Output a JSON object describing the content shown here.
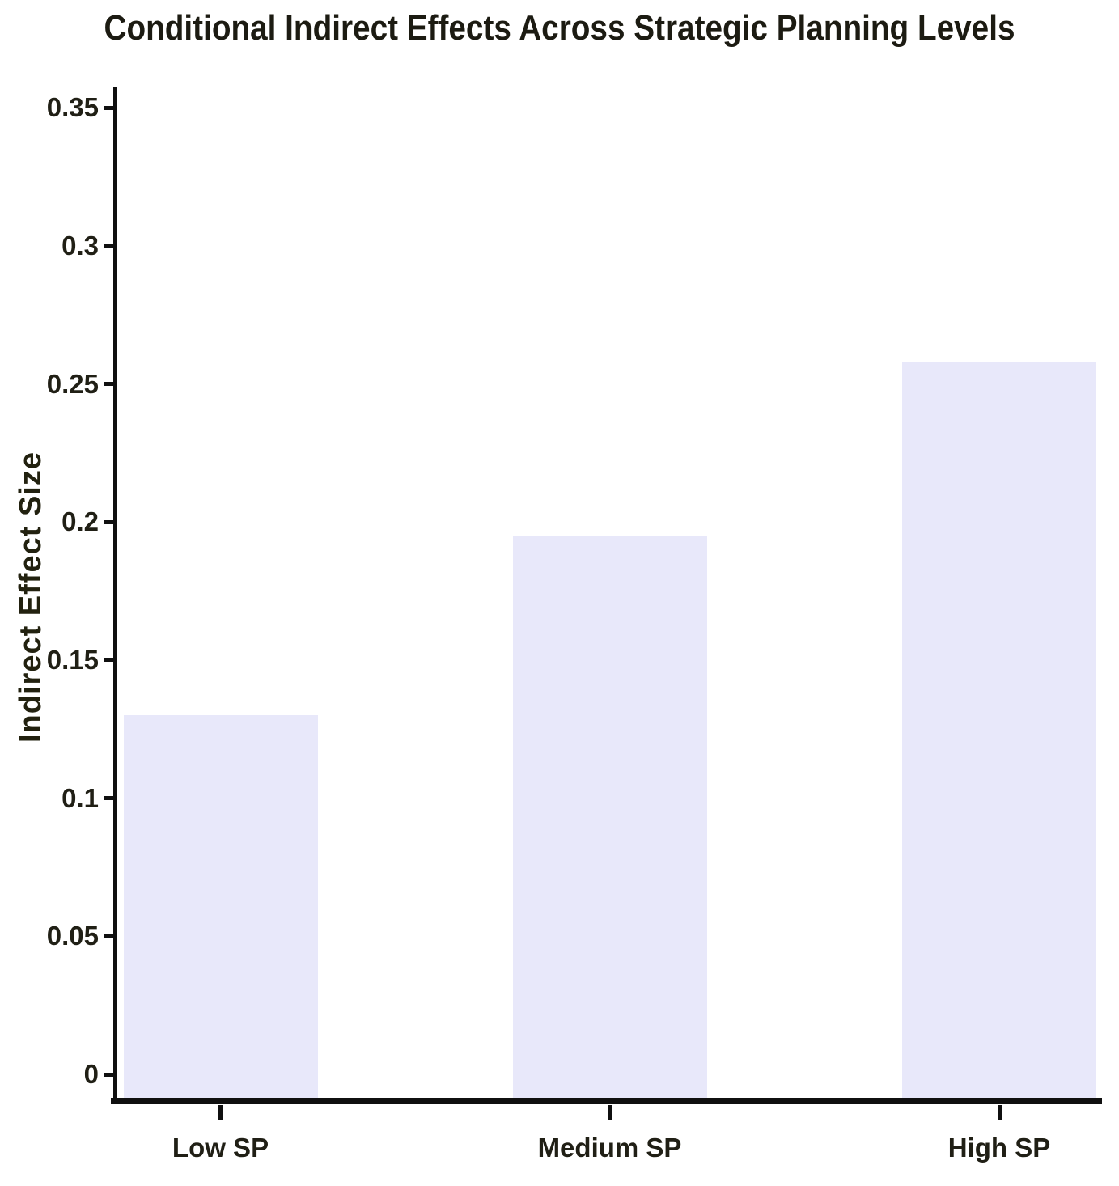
{
  "chart_data": {
    "type": "bar",
    "title": "Conditional Indirect Effects Across Strategic Planning Levels",
    "xlabel": "",
    "ylabel": "Indirect Effect Size",
    "categories": [
      "Low SP",
      "Medium SP",
      "High SP"
    ],
    "values": [
      0.13,
      0.195,
      0.258
    ],
    "series_name": "Indirect Effect Size",
    "yticks": [
      0,
      0.05,
      0.1,
      0.15,
      0.2,
      0.25,
      0.3,
      0.35
    ],
    "ytick_labels": [
      "0",
      "0.05",
      "0.1",
      "0.15",
      "0.2",
      "0.25",
      "0.3",
      "0.35"
    ],
    "ylim": [
      -0.008,
      0.357
    ],
    "grid": false,
    "legend": "none",
    "colors": {
      "bar_fill": "#E8E8FA",
      "axis": "#101010",
      "title_text": "#1c1b12",
      "tick_text": "#201f15",
      "background": "#ffffff"
    }
  }
}
